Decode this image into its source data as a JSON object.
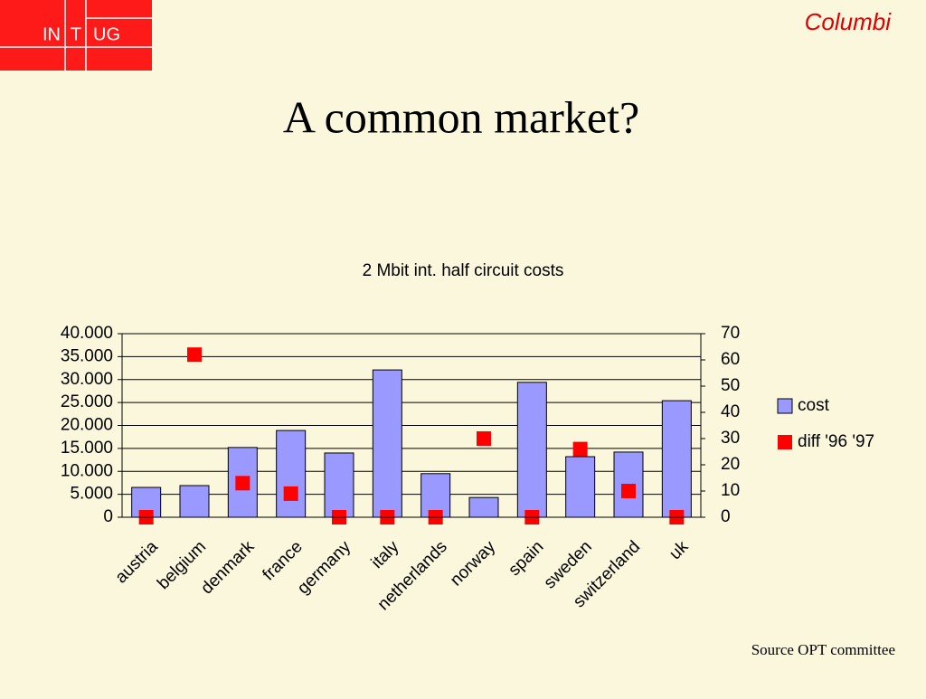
{
  "logo": [
    "IN",
    "T",
    "UG"
  ],
  "header": "Columbi",
  "title": "A common market?",
  "source": "Source OPT committee",
  "chart_data": {
    "type": "bar",
    "title": "2 Mbit int. half circuit costs",
    "categories": [
      "austria",
      "belgium",
      "denmark",
      "france",
      "germany",
      "italy",
      "netherlands",
      "norway",
      "spain",
      "sweden",
      "switzerland",
      "uk"
    ],
    "series": [
      {
        "name": "cost",
        "type": "bar",
        "color": "#9999ff",
        "values": [
          6500,
          6900,
          15200,
          18900,
          14000,
          32100,
          9500,
          4300,
          29400,
          13200,
          14200,
          25400
        ]
      },
      {
        "name": "diff '96 '97",
        "type": "marker",
        "axis": "y2",
        "color": "#ff0000",
        "values": [
          0,
          62,
          13,
          9,
          0,
          0,
          0,
          30,
          0,
          26,
          10,
          0
        ]
      }
    ],
    "ylim": [
      0,
      40000
    ],
    "yticks": [
      0,
      {
        "value": 5000,
        "label": "5.000"
      },
      {
        "value": 10000,
        "label": "10.000"
      },
      {
        "value": 15000,
        "label": "15.000"
      },
      {
        "value": 20000,
        "label": "20.000"
      },
      {
        "value": 25000,
        "label": "25.000"
      },
      {
        "value": 30000,
        "label": "30.000"
      },
      {
        "value": 35000,
        "label": "35.000"
      },
      {
        "value": 40000,
        "label": "40.000"
      }
    ],
    "y2lim": [
      0,
      70
    ],
    "y2ticks": [
      0,
      10,
      20,
      30,
      40,
      50,
      60,
      70
    ],
    "grid": true,
    "legend": "right"
  }
}
